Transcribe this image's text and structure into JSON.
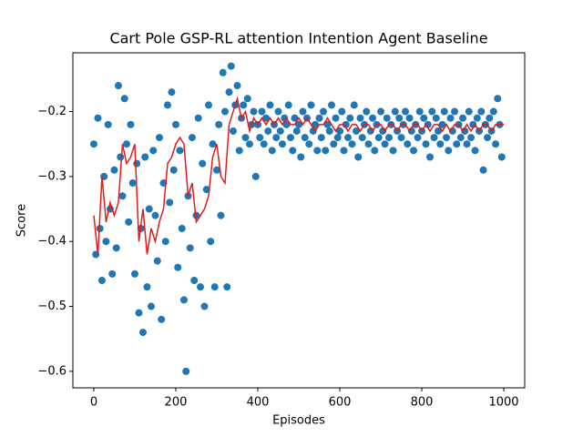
{
  "chart_data": {
    "type": "scatter",
    "title": "Cart Pole GSP-RL attention Intention Agent Baseline",
    "x_label": "Episodes",
    "y_label": "Score",
    "xlim": [
      -51,
      1051
    ],
    "ylim": [
      -0.6254,
      -0.1095
    ],
    "xticks": [
      0,
      200,
      400,
      600,
      800,
      1000
    ],
    "yticks": [
      {
        "value": -0.6,
        "label": "−0.6"
      },
      {
        "value": -0.5,
        "label": "−0.5"
      },
      {
        "value": -0.4,
        "label": "−0.4"
      },
      {
        "value": -0.3,
        "label": "−0.3"
      },
      {
        "value": -0.2,
        "label": "−0.2"
      }
    ],
    "series": [
      {
        "kind": "scatter",
        "color": "#1f77b4",
        "x": [
          0,
          5,
          10,
          15,
          20,
          25,
          30,
          35,
          40,
          45,
          50,
          55,
          60,
          65,
          70,
          75,
          80,
          85,
          90,
          95,
          100,
          105,
          110,
          115,
          120,
          125,
          130,
          135,
          140,
          145,
          150,
          155,
          160,
          165,
          170,
          175,
          180,
          185,
          190,
          195,
          200,
          205,
          210,
          215,
          220,
          225,
          230,
          235,
          240,
          245,
          250,
          255,
          260,
          265,
          270,
          275,
          280,
          285,
          290,
          295,
          300,
          305,
          310,
          315,
          320,
          325,
          330,
          335,
          340,
          345,
          350,
          355,
          360,
          365,
          370,
          375,
          380,
          385,
          390,
          395,
          400,
          405,
          410,
          415,
          420,
          425,
          430,
          435,
          440,
          445,
          450,
          455,
          460,
          465,
          470,
          475,
          480,
          485,
          490,
          495,
          500,
          505,
          510,
          515,
          520,
          525,
          530,
          535,
          540,
          545,
          550,
          555,
          560,
          565,
          570,
          575,
          580,
          585,
          590,
          595,
          600,
          605,
          610,
          615,
          620,
          625,
          630,
          635,
          640,
          645,
          650,
          655,
          660,
          665,
          670,
          675,
          680,
          685,
          690,
          695,
          700,
          705,
          710,
          715,
          720,
          725,
          730,
          735,
          740,
          745,
          750,
          755,
          760,
          765,
          770,
          775,
          780,
          785,
          790,
          795,
          800,
          805,
          810,
          815,
          820,
          825,
          830,
          835,
          840,
          845,
          850,
          855,
          860,
          865,
          870,
          875,
          880,
          885,
          890,
          895,
          900,
          905,
          910,
          915,
          920,
          925,
          930,
          935,
          940,
          945,
          950,
          955,
          960,
          965,
          970,
          975,
          980,
          985,
          990,
          995
        ],
        "values": [
          -0.25,
          -0.42,
          -0.21,
          -0.38,
          -0.46,
          -0.3,
          -0.4,
          -0.22,
          -0.35,
          -0.45,
          -0.29,
          -0.41,
          -0.16,
          -0.27,
          -0.33,
          -0.18,
          -0.25,
          -0.37,
          -0.22,
          -0.31,
          -0.45,
          -0.28,
          -0.51,
          -0.38,
          -0.54,
          -0.27,
          -0.47,
          -0.35,
          -0.5,
          -0.26,
          -0.36,
          -0.43,
          -0.24,
          -0.52,
          -0.31,
          -0.4,
          -0.19,
          -0.34,
          -0.17,
          -0.29,
          -0.22,
          -0.44,
          -0.26,
          -0.38,
          -0.49,
          -0.6,
          -0.33,
          -0.41,
          -0.24,
          -0.46,
          -0.36,
          -0.21,
          -0.47,
          -0.28,
          -0.5,
          -0.32,
          -0.19,
          -0.4,
          -0.25,
          -0.47,
          -0.29,
          -0.22,
          -0.36,
          -0.14,
          -0.2,
          -0.47,
          -0.17,
          -0.13,
          -0.23,
          -0.19,
          -0.16,
          -0.26,
          -0.21,
          -0.19,
          -0.24,
          -0.18,
          -0.25,
          -0.22,
          -0.2,
          -0.3,
          -0.22,
          -0.24,
          -0.2,
          -0.25,
          -0.21,
          -0.23,
          -0.19,
          -0.26,
          -0.22,
          -0.24,
          -0.2,
          -0.23,
          -0.25,
          -0.21,
          -0.22,
          -0.19,
          -0.24,
          -0.26,
          -0.21,
          -0.23,
          -0.22,
          -0.27,
          -0.2,
          -0.24,
          -0.21,
          -0.25,
          -0.19,
          -0.23,
          -0.22,
          -0.26,
          -0.21,
          -0.24,
          -0.2,
          -0.26,
          -0.22,
          -0.23,
          -0.19,
          -0.25,
          -0.21,
          -0.24,
          -0.23,
          -0.2,
          -0.26,
          -0.22,
          -0.24,
          -0.21,
          -0.25,
          -0.19,
          -0.23,
          -0.27,
          -0.21,
          -0.24,
          -0.22,
          -0.2,
          -0.25,
          -0.23,
          -0.21,
          -0.26,
          -0.22,
          -0.24,
          -0.2,
          -0.23,
          -0.25,
          -0.21,
          -0.24,
          -0.22,
          -0.26,
          -0.2,
          -0.23,
          -0.21,
          -0.24,
          -0.22,
          -0.2,
          -0.25,
          -0.21,
          -0.23,
          -0.26,
          -0.22,
          -0.24,
          -0.2,
          -0.23,
          -0.21,
          -0.25,
          -0.22,
          -0.27,
          -0.2,
          -0.24,
          -0.21,
          -0.23,
          -0.25,
          -0.22,
          -0.2,
          -0.24,
          -0.26,
          -0.21,
          -0.23,
          -0.2,
          -0.25,
          -0.22,
          -0.24,
          -0.21,
          -0.23,
          -0.25,
          -0.2,
          -0.24,
          -0.22,
          -0.26,
          -0.21,
          -0.23,
          -0.2,
          -0.29,
          -0.22,
          -0.24,
          -0.21,
          -0.23,
          -0.2,
          -0.25,
          -0.18,
          -0.22,
          -0.27
        ]
      },
      {
        "kind": "line",
        "color": "#e31a1c",
        "x": [
          0,
          10,
          20,
          30,
          40,
          50,
          60,
          70,
          80,
          90,
          100,
          110,
          120,
          130,
          140,
          150,
          160,
          170,
          180,
          190,
          200,
          210,
          220,
          230,
          240,
          250,
          260,
          270,
          280,
          290,
          300,
          310,
          320,
          330,
          340,
          350,
          360,
          370,
          380,
          390,
          400,
          410,
          420,
          430,
          440,
          450,
          460,
          470,
          480,
          490,
          500,
          510,
          520,
          530,
          540,
          550,
          560,
          570,
          580,
          590,
          600,
          610,
          620,
          630,
          640,
          650,
          660,
          670,
          680,
          690,
          700,
          710,
          720,
          730,
          740,
          750,
          760,
          770,
          780,
          790,
          800,
          810,
          820,
          830,
          840,
          850,
          860,
          870,
          880,
          890,
          900,
          910,
          920,
          930,
          940,
          950,
          960,
          970,
          980,
          990,
          1000
        ],
        "values": [
          -0.36,
          -0.42,
          -0.3,
          -0.37,
          -0.34,
          -0.36,
          -0.34,
          -0.25,
          -0.28,
          -0.27,
          -0.25,
          -0.4,
          -0.35,
          -0.42,
          -0.38,
          -0.4,
          -0.37,
          -0.35,
          -0.28,
          -0.27,
          -0.25,
          -0.24,
          -0.25,
          -0.33,
          -0.31,
          -0.37,
          -0.36,
          -0.35,
          -0.33,
          -0.27,
          -0.25,
          -0.3,
          -0.31,
          -0.22,
          -0.2,
          -0.18,
          -0.21,
          -0.2,
          -0.23,
          -0.21,
          -0.22,
          -0.21,
          -0.22,
          -0.21,
          -0.22,
          -0.21,
          -0.22,
          -0.21,
          -0.22,
          -0.22,
          -0.21,
          -0.22,
          -0.21,
          -0.22,
          -0.23,
          -0.22,
          -0.22,
          -0.21,
          -0.22,
          -0.23,
          -0.22,
          -0.22,
          -0.23,
          -0.22,
          -0.22,
          -0.23,
          -0.22,
          -0.22,
          -0.23,
          -0.22,
          -0.22,
          -0.23,
          -0.22,
          -0.22,
          -0.23,
          -0.22,
          -0.22,
          -0.23,
          -0.22,
          -0.22,
          -0.23,
          -0.22,
          -0.23,
          -0.22,
          -0.22,
          -0.23,
          -0.22,
          -0.23,
          -0.22,
          -0.22,
          -0.23,
          -0.22,
          -0.23,
          -0.22,
          -0.23,
          -0.22,
          -0.22,
          -0.23,
          -0.22,
          -0.22,
          -0.22
        ]
      }
    ]
  }
}
